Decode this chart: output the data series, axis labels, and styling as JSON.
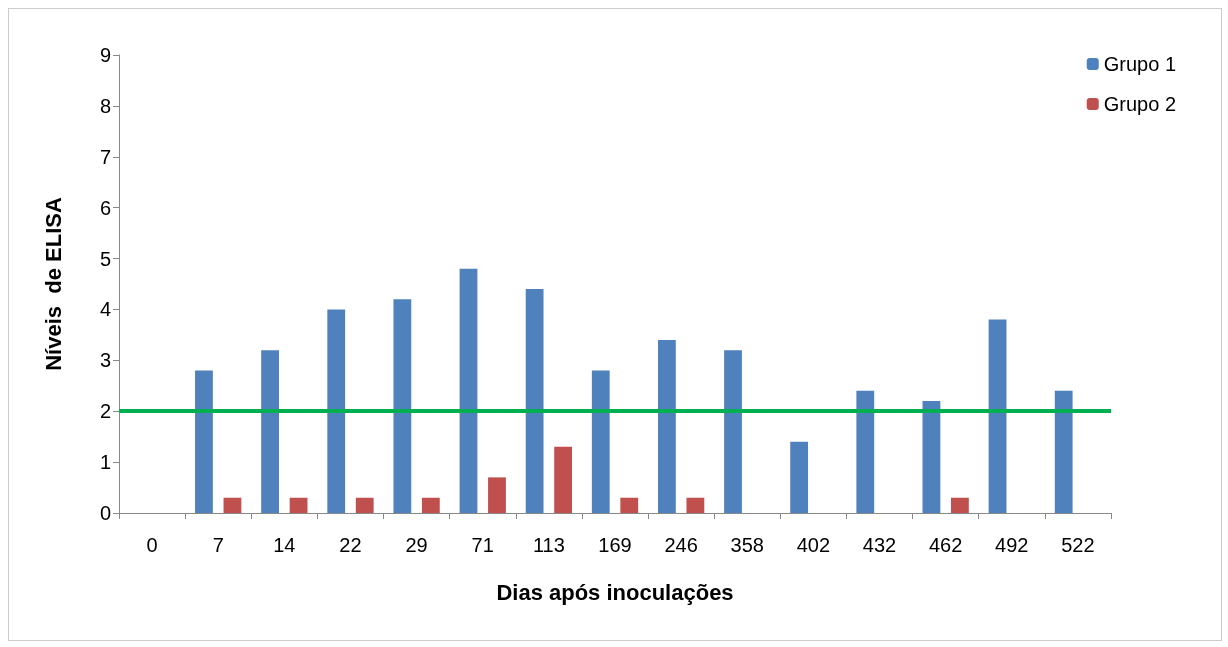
{
  "chart_data": {
    "type": "bar",
    "xlabel": "Dias após inoculações",
    "ylabel": "Níveis  de ELISA",
    "categories": [
      "0",
      "7",
      "14",
      "22",
      "29",
      "71",
      "113",
      "169",
      "246",
      "358",
      "402",
      "432",
      "462",
      "492",
      "522"
    ],
    "series": [
      {
        "name": "Grupo 1",
        "color": "#4f81bd",
        "values": [
          0,
          2.8,
          3.2,
          4.0,
          4.2,
          4.8,
          4.4,
          2.8,
          3.4,
          3.2,
          1.4,
          2.4,
          2.2,
          3.8,
          2.4
        ]
      },
      {
        "name": "Grupo 2",
        "color": "#c0504d",
        "values": [
          0,
          0.3,
          0.3,
          0.3,
          0.3,
          0.7,
          1.3,
          0.3,
          0.3,
          0,
          0,
          0,
          0.3,
          0,
          0
        ]
      }
    ],
    "ylim": [
      0,
      9
    ],
    "yticks": [
      0,
      1,
      2,
      3,
      4,
      5,
      6,
      7,
      8,
      9
    ],
    "grid": false,
    "legend": "top right",
    "ref_lines": [
      {
        "axis": "y",
        "value": 2,
        "color": "#00b050",
        "line_style": "solid"
      }
    ]
  }
}
